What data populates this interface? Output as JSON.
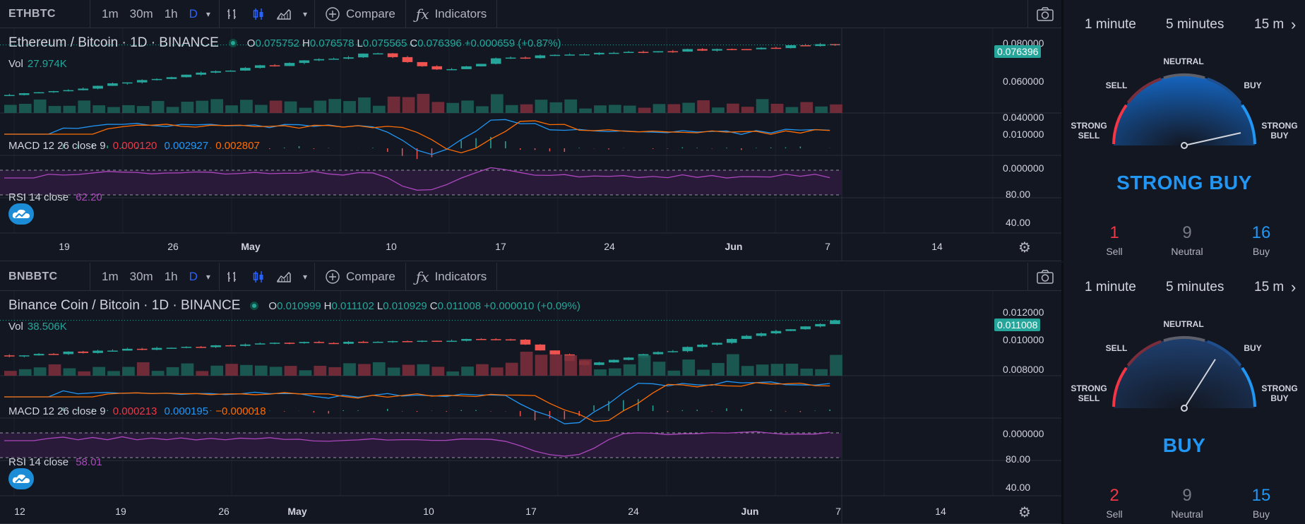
{
  "charts": [
    {
      "symbol": "ETHBTC",
      "toolbar": {
        "intervals": [
          "1m",
          "30m",
          "1h",
          "D"
        ],
        "compare": "Compare",
        "indicators": "Indicators"
      },
      "title": "Ethereum / Bitcoin · 1D · BINANCE",
      "ohlc": {
        "o": "0.075752",
        "h": "0.076578",
        "l": "0.075565",
        "c": "0.076396",
        "chg": "+0.000659 (+0.87%)"
      },
      "vol": {
        "label": "Vol",
        "value": "27.974K"
      },
      "macd": {
        "label": "MACD 12 26 close 9",
        "v1": "0.000120",
        "v2": "0.002927",
        "v3": "0.002807"
      },
      "rsi": {
        "label": "RSI 14 close",
        "value": "62.20"
      },
      "price_axis": [
        "0.080000",
        "0.060000",
        "0.040000"
      ],
      "last_price": "0.076396",
      "macd_axis": [
        "0.010000",
        "0.000000"
      ],
      "rsi_axis": [
        "80.00",
        "40.00"
      ],
      "time_axis": [
        "19",
        "26",
        "May",
        "10",
        "17",
        "24",
        "Jun",
        "7",
        "14"
      ]
    },
    {
      "symbol": "BNBBTC",
      "toolbar": {
        "intervals": [
          "1m",
          "30m",
          "1h",
          "D"
        ],
        "compare": "Compare",
        "indicators": "Indicators"
      },
      "title": "Binance Coin / Bitcoin · 1D · BINANCE",
      "ohlc": {
        "o": "0.010999",
        "h": "0.011102",
        "l": "0.010929",
        "c": "0.011008",
        "chg": "+0.000010 (+0.09%)"
      },
      "vol": {
        "label": "Vol",
        "value": "38.506K"
      },
      "macd": {
        "label": "MACD 12 26 close 9",
        "v1": "0.000213",
        "v2": "0.000195",
        "v3": "−0.000018"
      },
      "rsi": {
        "label": "RSI 14 close",
        "value": "58.01"
      },
      "price_axis": [
        "0.012000",
        "0.010000",
        "0.008000"
      ],
      "last_price": "0.011008",
      "macd_axis": [
        "0.000000"
      ],
      "rsi_axis": [
        "80.00",
        "40.00"
      ],
      "time_axis": [
        "12",
        "19",
        "26",
        "May",
        "10",
        "17",
        "24",
        "Jun",
        "7",
        "14"
      ]
    }
  ],
  "technicals": [
    {
      "tabs": [
        "1 minute",
        "5 minutes",
        "15 m"
      ],
      "gauge": {
        "neutral": "NEUTRAL",
        "sell": "SELL",
        "buy": "BUY",
        "strong_sell": "STRONG SELL",
        "strong_buy": "STRONG BUY",
        "needle_level": 0.93
      },
      "verdict": "STRONG BUY",
      "counts": [
        {
          "n": "1",
          "label": "Sell"
        },
        {
          "n": "9",
          "label": "Neutral"
        },
        {
          "n": "16",
          "label": "Buy"
        }
      ]
    },
    {
      "tabs": [
        "1 minute",
        "5 minutes",
        "15 m"
      ],
      "gauge": {
        "neutral": "NEUTRAL",
        "sell": "SELL",
        "buy": "BUY",
        "strong_sell": "STRONG SELL",
        "strong_buy": "STRONG BUY",
        "needle_level": 0.68
      },
      "verdict": "BUY",
      "counts": [
        {
          "n": "2",
          "label": "Sell"
        },
        {
          "n": "9",
          "label": "Neutral"
        },
        {
          "n": "15",
          "label": "Buy"
        }
      ]
    }
  ],
  "colors": {
    "up": "#26a69a",
    "down": "#ef5350",
    "macd": "#2196f3",
    "signal": "#ff6d00",
    "rsi": "#ab47bc",
    "buy": "#2196f3",
    "sell": "#f23645"
  }
}
